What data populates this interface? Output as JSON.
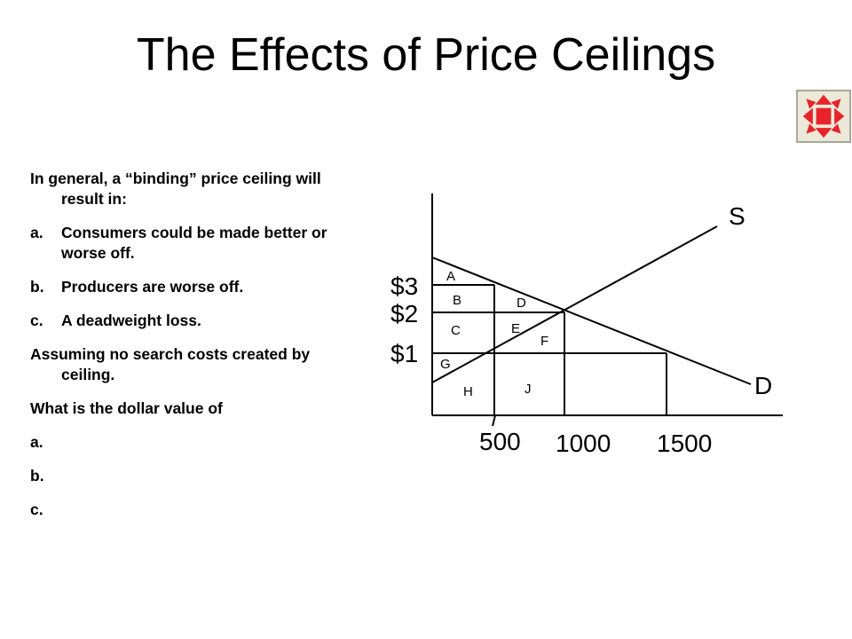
{
  "slide": {
    "title": "The Effects of Price Ceilings",
    "nav_icon": "expand-arrows-icon"
  },
  "body": {
    "intro": "In general, a “binding” price ceiling will result in:",
    "results": [
      {
        "marker": "a.",
        "text": "Consumers could be made better or worse off."
      },
      {
        "marker": "b.",
        "text": "Producers are worse off."
      },
      {
        "marker": "c.",
        "text": "A deadweight loss."
      }
    ],
    "assumption": "Assuming no search costs created by ceiling.",
    "question": "What is the dollar value of",
    "answers": [
      "a.",
      "b.",
      "c."
    ]
  },
  "diagram": {
    "curves": {
      "supply": "S",
      "demand": "D"
    },
    "price_labels": [
      "$3",
      "$2",
      "$1"
    ],
    "quantity_labels": [
      "500",
      "1000",
      "1500"
    ],
    "area_labels": [
      "A",
      "B",
      "C",
      "D",
      "E",
      "F",
      "G",
      "H",
      "J"
    ]
  }
}
